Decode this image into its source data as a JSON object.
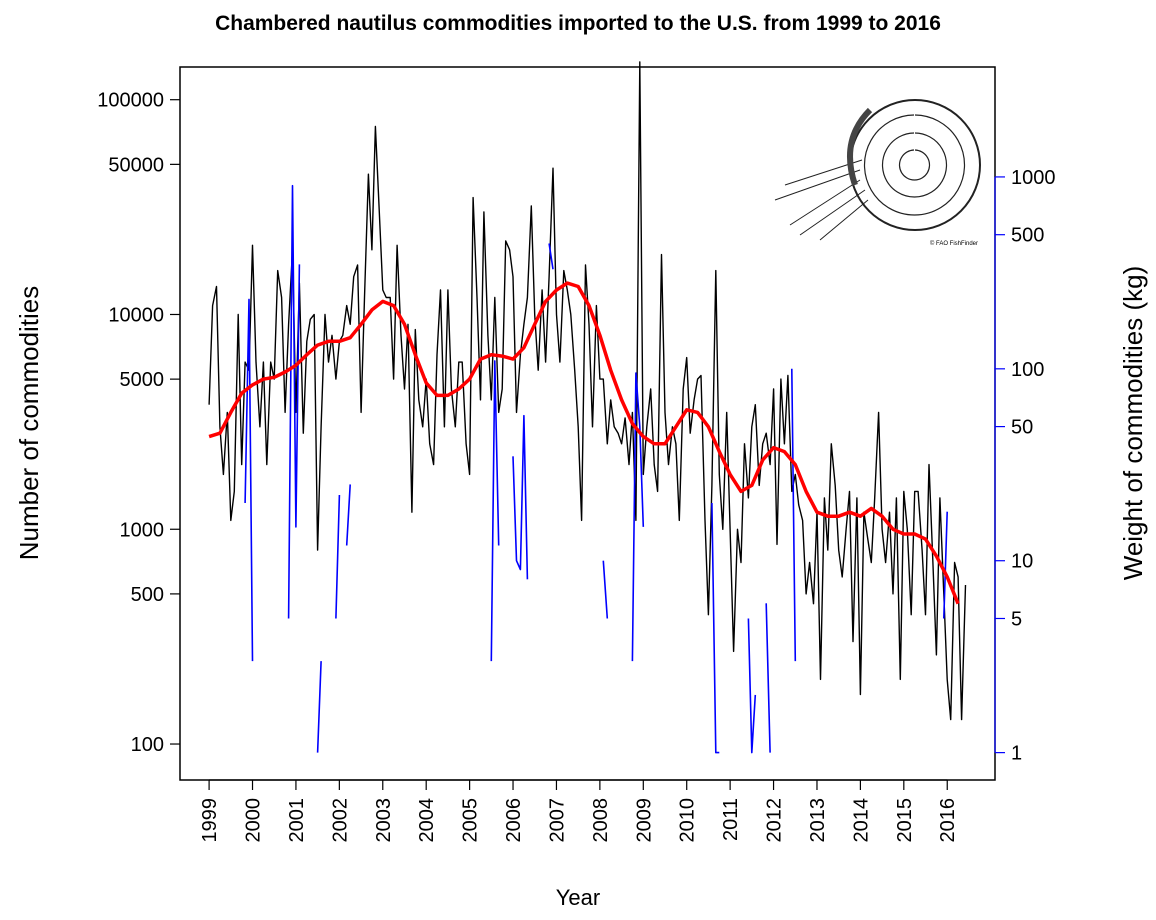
{
  "chart_data": {
    "type": "line",
    "title": "Chambered nautilus commodities imported to the U.S. from 1999 to 2016",
    "x_label": "Year",
    "y_label": "Number of commodities",
    "y2_label": "Weight of commodities (kg)",
    "image_credit": "© FAO FishFinder",
    "log_y": true,
    "log_y2": true,
    "xlim": [
      1998.33,
      2017.1
    ],
    "xticks": [
      1999,
      2000,
      2001,
      2002,
      2003,
      2004,
      2005,
      2006,
      2007,
      2008,
      2009,
      2010,
      2011,
      2012,
      2013,
      2014,
      2015,
      2016
    ],
    "ylim": [
      68,
      142000
    ],
    "yticks": [
      100,
      500,
      1000,
      5000,
      10000,
      50000,
      100000
    ],
    "y2lim": [
      0.72,
      3740
    ],
    "y2ticks": [
      1,
      5,
      10,
      50,
      100,
      500,
      1000
    ],
    "y2_color": "#0000ff",
    "x": [
      1999,
      1999.08,
      1999.17,
      1999.25,
      1999.33,
      1999.42,
      1999.5,
      1999.58,
      1999.67,
      1999.75,
      1999.83,
      1999.92,
      2000,
      2000.08,
      2000.17,
      2000.25,
      2000.33,
      2000.42,
      2000.5,
      2000.58,
      2000.67,
      2000.75,
      2000.83,
      2000.92,
      2001,
      2001.08,
      2001.17,
      2001.25,
      2001.33,
      2001.42,
      2001.5,
      2001.58,
      2001.67,
      2001.75,
      2001.83,
      2001.92,
      2002,
      2002.08,
      2002.17,
      2002.25,
      2002.33,
      2002.42,
      2002.5,
      2002.58,
      2002.67,
      2002.75,
      2002.83,
      2002.92,
      2003,
      2003.08,
      2003.17,
      2003.25,
      2003.33,
      2003.42,
      2003.5,
      2003.58,
      2003.67,
      2003.75,
      2003.83,
      2003.92,
      2004,
      2004.08,
      2004.17,
      2004.25,
      2004.33,
      2004.42,
      2004.5,
      2004.58,
      2004.67,
      2004.75,
      2004.83,
      2004.92,
      2005,
      2005.08,
      2005.17,
      2005.25,
      2005.33,
      2005.42,
      2005.5,
      2005.58,
      2005.67,
      2005.75,
      2005.83,
      2005.92,
      2006,
      2006.08,
      2006.17,
      2006.25,
      2006.33,
      2006.42,
      2006.5,
      2006.58,
      2006.67,
      2006.75,
      2006.83,
      2006.92,
      2007,
      2007.08,
      2007.17,
      2007.25,
      2007.33,
      2007.42,
      2007.5,
      2007.58,
      2007.67,
      2007.75,
      2007.83,
      2007.92,
      2008,
      2008.08,
      2008.17,
      2008.25,
      2008.33,
      2008.42,
      2008.5,
      2008.58,
      2008.67,
      2008.75,
      2008.83,
      2008.92,
      2009,
      2009.08,
      2009.17,
      2009.25,
      2009.33,
      2009.42,
      2009.5,
      2009.58,
      2009.67,
      2009.75,
      2009.83,
      2009.92,
      2010,
      2010.08,
      2010.17,
      2010.25,
      2010.33,
      2010.42,
      2010.5,
      2010.58,
      2010.67,
      2010.75,
      2010.83,
      2010.92,
      2011,
      2011.08,
      2011.17,
      2011.25,
      2011.33,
      2011.42,
      2011.5,
      2011.58,
      2011.67,
      2011.75,
      2011.83,
      2011.92,
      2012,
      2012.08,
      2012.17,
      2012.25,
      2012.33,
      2012.42,
      2012.5,
      2012.58,
      2012.67,
      2012.75,
      2012.83,
      2012.92,
      2013,
      2013.08,
      2013.17,
      2013.25,
      2013.33,
      2013.42,
      2013.5,
      2013.58,
      2013.67,
      2013.75,
      2013.83,
      2013.92,
      2014,
      2014.08,
      2014.17,
      2014.25,
      2014.33,
      2014.42,
      2014.5,
      2014.58,
      2014.67,
      2014.75,
      2014.83,
      2014.92,
      2015,
      2015.08,
      2015.17,
      2015.25,
      2015.33,
      2015.42,
      2015.5,
      2015.58,
      2015.67,
      2015.75,
      2015.83,
      2015.92,
      2016,
      2016.08,
      2016.17,
      2016.25,
      2016.33,
      2016.42
    ],
    "series": [
      {
        "color": "#000000",
        "width": 1.4,
        "values": [
          3800,
          11000,
          13500,
          3000,
          1800,
          3500,
          1100,
          1500,
          10000,
          2000,
          6000,
          5500,
          21000,
          6000,
          3000,
          6000,
          2000,
          6000,
          5000,
          16000,
          12000,
          3500,
          9000,
          20000,
          3500,
          14000,
          2800,
          7500,
          9500,
          10000,
          800,
          3000,
          10000,
          6000,
          8000,
          5000,
          7500,
          8000,
          11000,
          9000,
          15000,
          17000,
          3500,
          12000,
          45000,
          20000,
          75000,
          30000,
          13000,
          12000,
          12000,
          5000,
          21000,
          8000,
          4500,
          9000,
          1200,
          8500,
          4000,
          3000,
          5000,
          2500,
          2000,
          6500,
          13000,
          3000,
          13000,
          4500,
          3000,
          6000,
          6000,
          2500,
          1800,
          35000,
          12000,
          4000,
          30000,
          8000,
          4000,
          12000,
          3500,
          4500,
          22000,
          20000,
          15000,
          3500,
          6500,
          9000,
          12000,
          32000,
          10000,
          5500,
          13000,
          6000,
          15000,
          48000,
          10000,
          6000,
          16000,
          13000,
          10000,
          5500,
          3000,
          1100,
          17000,
          9000,
          3000,
          11000,
          5000,
          5000,
          2500,
          4000,
          3000,
          2800,
          2500,
          3300,
          2000,
          3500,
          1100,
          150000,
          1800,
          3000,
          4500,
          2000,
          1500,
          19000,
          3500,
          2000,
          3000,
          2500,
          1100,
          4500,
          6300,
          2800,
          4000,
          5000,
          5200,
          1100,
          400,
          1600,
          16000,
          1800,
          1000,
          3500,
          1000,
          270,
          1000,
          700,
          2500,
          1400,
          3000,
          3800,
          1600,
          2500,
          2800,
          2000,
          4500,
          850,
          5000,
          2500,
          5200,
          1500,
          1800,
          1300,
          1100,
          500,
          700,
          450,
          1200,
          200,
          1400,
          800,
          2500,
          1600,
          800,
          600,
          1000,
          1500,
          300,
          1400,
          170,
          1200,
          900,
          700,
          1400,
          3500,
          1000,
          700,
          1200,
          500,
          1400,
          200,
          1500,
          1000,
          400,
          1500,
          1500,
          800,
          400,
          2000,
          700,
          260,
          1400,
          500,
          200,
          130,
          700,
          600,
          130,
          550
        ]
      },
      {
        "color": "#0000ff",
        "width": 1.6,
        "axis": "y2",
        "values": [
          null,
          null,
          null,
          null,
          null,
          null,
          null,
          null,
          null,
          null,
          20,
          230,
          3,
          null,
          null,
          null,
          null,
          null,
          null,
          null,
          null,
          null,
          5,
          900,
          15,
          350,
          null,
          null,
          null,
          null,
          1,
          3,
          null,
          null,
          null,
          5,
          22,
          null,
          12,
          25,
          null,
          null,
          null,
          null,
          null,
          null,
          null,
          null,
          null,
          null,
          null,
          null,
          null,
          null,
          null,
          null,
          null,
          null,
          null,
          null,
          null,
          null,
          null,
          null,
          null,
          null,
          null,
          null,
          null,
          null,
          null,
          null,
          null,
          null,
          null,
          null,
          null,
          null,
          3,
          110,
          12,
          null,
          null,
          null,
          35,
          10,
          9,
          57,
          8,
          null,
          null,
          null,
          null,
          null,
          450,
          330,
          null,
          null,
          null,
          null,
          null,
          null,
          null,
          null,
          null,
          null,
          null,
          null,
          null,
          10,
          5,
          null,
          null,
          null,
          null,
          null,
          null,
          3,
          95,
          50,
          15,
          null,
          null,
          null,
          null,
          null,
          null,
          null,
          null,
          null,
          null,
          null,
          null,
          null,
          null,
          null,
          null,
          null,
          null,
          20,
          1,
          1,
          null,
          null,
          null,
          null,
          null,
          null,
          null,
          5,
          1,
          2,
          null,
          null,
          6,
          1,
          null,
          null,
          null,
          null,
          null,
          100,
          3,
          null,
          null,
          null,
          null,
          null,
          null,
          null,
          null,
          null,
          null,
          null,
          null,
          null,
          null,
          null,
          null,
          null,
          null,
          null,
          null,
          null,
          null,
          null,
          null,
          null,
          null,
          null,
          null,
          null,
          null,
          null,
          null,
          null,
          null,
          null,
          null,
          null,
          null,
          null,
          null,
          5,
          18,
          null,
          null,
          null,
          null,
          null
        ]
      },
      {
        "color": "#ff0000",
        "width": 3.5,
        "x": [
          1999,
          1999.25,
          1999.5,
          1999.75,
          2000,
          2000.25,
          2000.5,
          2000.75,
          2001,
          2001.25,
          2001.5,
          2001.75,
          2002,
          2002.25,
          2002.5,
          2002.75,
          2003,
          2003.25,
          2003.5,
          2003.75,
          2004,
          2004.25,
          2004.5,
          2004.75,
          2005,
          2005.25,
          2005.5,
          2005.75,
          2006,
          2006.25,
          2006.5,
          2006.75,
          2007,
          2007.25,
          2007.5,
          2007.75,
          2008,
          2008.25,
          2008.5,
          2008.75,
          2009,
          2009.25,
          2009.5,
          2009.75,
          2010,
          2010.25,
          2010.5,
          2010.75,
          2011,
          2011.25,
          2011.5,
          2011.75,
          2012,
          2012.25,
          2012.5,
          2012.75,
          2013,
          2013.25,
          2013.5,
          2013.75,
          2014,
          2014.25,
          2014.5,
          2014.75,
          2015,
          2015.25,
          2015.5,
          2015.75,
          2016,
          2016.25
        ],
        "values": [
          2700,
          2800,
          3500,
          4300,
          4700,
          5000,
          5100,
          5400,
          5800,
          6500,
          7200,
          7500,
          7500,
          7800,
          9000,
          10500,
          11500,
          11000,
          9000,
          6500,
          4800,
          4200,
          4200,
          4500,
          5000,
          6200,
          6500,
          6400,
          6200,
          7000,
          9000,
          11500,
          13000,
          14000,
          13500,
          11000,
          8000,
          5500,
          4000,
          3100,
          2700,
          2500,
          2500,
          3000,
          3600,
          3500,
          3000,
          2300,
          1800,
          1500,
          1600,
          2100,
          2400,
          2300,
          2000,
          1500,
          1200,
          1150,
          1150,
          1200,
          1150,
          1250,
          1150,
          1000,
          950,
          950,
          900,
          750,
          600,
          450
        ]
      }
    ]
  }
}
